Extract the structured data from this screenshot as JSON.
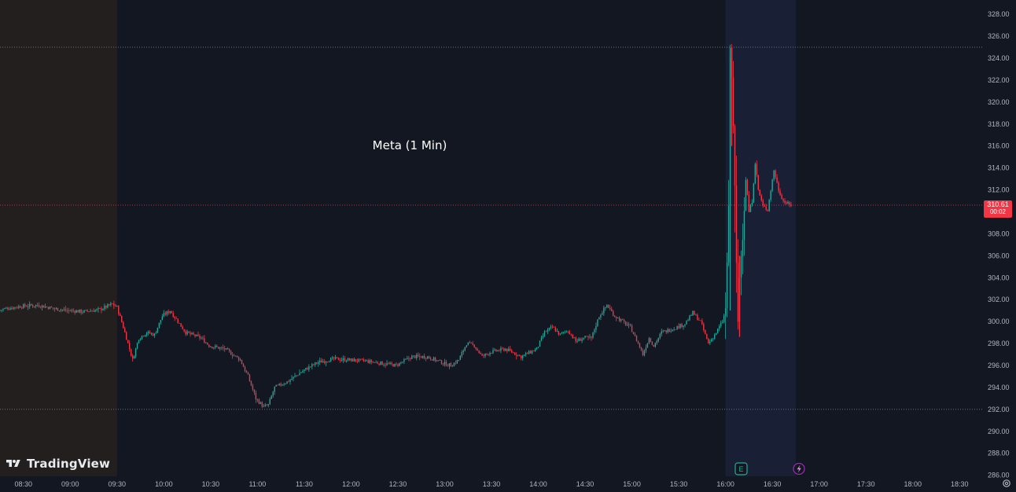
{
  "brand": {
    "name": "TradingView",
    "logo_icon": "tradingview-logo-icon"
  },
  "colors": {
    "background": "#131722",
    "premarket_shade": "#231f1f",
    "postmarket_shade": "#192035",
    "up": "#26a69a",
    "down": "#f23645",
    "axis_text": "#b2b5be",
    "grid": "#2a2e39",
    "earnings_marker": "#22ab94",
    "dividend_marker": "#9c27b0"
  },
  "price_label": {
    "value": "310.61",
    "countdown": "00:02"
  },
  "markers": [
    {
      "icon": "earnings-icon",
      "label": "E",
      "time": "16:00"
    },
    {
      "icon": "lightning-icon",
      "label": "⚡",
      "time": "16:40"
    }
  ],
  "chart_data": {
    "type": "candlestick",
    "title": "Meta (1 Min)",
    "xlabel": "",
    "ylabel": "",
    "x_ticks": [
      "08:30",
      "09:00",
      "09:30",
      "10:00",
      "10:30",
      "11:00",
      "11:30",
      "12:00",
      "12:30",
      "13:00",
      "13:30",
      "14:00",
      "14:30",
      "15:00",
      "15:30",
      "16:00",
      "16:30",
      "17:00",
      "17:30",
      "18:00",
      "18:30"
    ],
    "y_ticks": [
      "286.00",
      "288.00",
      "290.00",
      "292.00",
      "294.00",
      "296.00",
      "298.00",
      "300.00",
      "302.00",
      "304.00",
      "306.00",
      "308.00",
      "310.00",
      "312.00",
      "314.00",
      "316.00",
      "318.00",
      "320.00",
      "322.00",
      "324.00",
      "326.00",
      "328.00"
    ],
    "ylim": [
      285.9,
      329.3
    ],
    "xlim": [
      "08:15",
      "18:45"
    ],
    "sessions": {
      "premarket_end": "09:30",
      "regular_end": "16:00",
      "postmarket_end": "16:45"
    },
    "horizontal_lines": [
      {
        "price": 325.0,
        "style": "dotted",
        "color": "#787b86"
      },
      {
        "price": 310.61,
        "style": "dotted",
        "color": "#f23645"
      },
      {
        "price": 292.0,
        "style": "dotted",
        "color": "#787b86"
      }
    ],
    "price_path": [
      [
        "08:15",
        301.0
      ],
      [
        "08:20",
        301.2
      ],
      [
        "08:30",
        301.4
      ],
      [
        "08:40",
        301.5
      ],
      [
        "08:50",
        301.2
      ],
      [
        "09:00",
        301.0
      ],
      [
        "09:10",
        300.9
      ],
      [
        "09:20",
        301.1
      ],
      [
        "09:28",
        301.6
      ],
      [
        "09:31",
        301.3
      ],
      [
        "09:35",
        299.5
      ],
      [
        "09:38",
        298.0
      ],
      [
        "09:41",
        296.5
      ],
      [
        "09:45",
        298.5
      ],
      [
        "09:50",
        299.0
      ],
      [
        "09:55",
        298.8
      ],
      [
        "10:00",
        300.5
      ],
      [
        "10:05",
        301.0
      ],
      [
        "10:10",
        300.0
      ],
      [
        "10:15",
        299.0
      ],
      [
        "10:25",
        298.5
      ],
      [
        "10:30",
        297.8
      ],
      [
        "10:40",
        297.5
      ],
      [
        "10:50",
        296.5
      ],
      [
        "10:55",
        295.0
      ],
      [
        "11:00",
        293.0
      ],
      [
        "11:05",
        292.2
      ],
      [
        "11:08",
        292.4
      ],
      [
        "11:12",
        294.0
      ],
      [
        "11:20",
        294.5
      ],
      [
        "11:30",
        295.5
      ],
      [
        "11:40",
        296.3
      ],
      [
        "11:50",
        296.6
      ],
      [
        "12:00",
        296.5
      ],
      [
        "12:10",
        296.4
      ],
      [
        "12:20",
        296.2
      ],
      [
        "12:30",
        296.0
      ],
      [
        "12:40",
        296.8
      ],
      [
        "12:50",
        296.8
      ],
      [
        "13:00",
        296.2
      ],
      [
        "13:05",
        296.0
      ],
      [
        "13:10",
        296.5
      ],
      [
        "13:15",
        298.0
      ],
      [
        "13:20",
        297.8
      ],
      [
        "13:25",
        296.8
      ],
      [
        "13:30",
        297.2
      ],
      [
        "13:40",
        297.5
      ],
      [
        "13:50",
        296.8
      ],
      [
        "14:00",
        297.5
      ],
      [
        "14:05",
        299.0
      ],
      [
        "14:10",
        299.5
      ],
      [
        "14:15",
        298.8
      ],
      [
        "14:20",
        299.2
      ],
      [
        "14:25",
        298.2
      ],
      [
        "14:30",
        298.5
      ],
      [
        "14:35",
        298.5
      ],
      [
        "14:40",
        300.5
      ],
      [
        "14:45",
        301.5
      ],
      [
        "14:50",
        300.5
      ],
      [
        "14:55",
        300.0
      ],
      [
        "15:00",
        299.5
      ],
      [
        "15:05",
        298.0
      ],
      [
        "15:08",
        297.0
      ],
      [
        "15:12",
        298.5
      ],
      [
        "15:15",
        297.8
      ],
      [
        "15:20",
        299.0
      ],
      [
        "15:30",
        299.5
      ],
      [
        "15:35",
        299.8
      ],
      [
        "15:40",
        300.8
      ],
      [
        "15:45",
        300.0
      ],
      [
        "15:50",
        298.0
      ],
      [
        "15:55",
        299.0
      ],
      [
        "15:59",
        300.0
      ],
      [
        "16:01",
        301.0
      ],
      [
        "16:03",
        310.0
      ],
      [
        "16:04",
        325.0
      ],
      [
        "16:05",
        322.0
      ],
      [
        "16:06",
        318.0
      ],
      [
        "16:07",
        312.0
      ],
      [
        "16:08",
        305.0
      ],
      [
        "16:09",
        300.0
      ],
      [
        "16:10",
        304.0
      ],
      [
        "16:12",
        308.0
      ],
      [
        "16:14",
        313.0
      ],
      [
        "16:16",
        310.0
      ],
      [
        "16:18",
        311.0
      ],
      [
        "16:20",
        314.5
      ],
      [
        "16:22",
        312.0
      ],
      [
        "16:25",
        310.5
      ],
      [
        "16:28",
        310.2
      ],
      [
        "16:30",
        312.0
      ],
      [
        "16:32",
        313.8
      ],
      [
        "16:35",
        312.0
      ],
      [
        "16:38",
        311.0
      ],
      [
        "16:42",
        310.61
      ]
    ]
  }
}
